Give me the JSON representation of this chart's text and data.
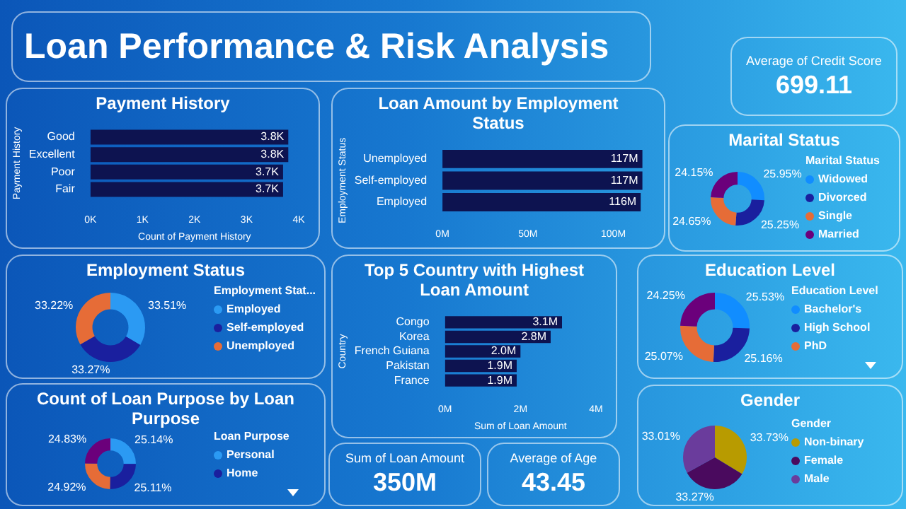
{
  "chart_data": [
    {
      "type": "other",
      "title": "Loan Performance & Risk Analysis"
    },
    {
      "type": "other",
      "title": "Average of Credit Score",
      "annotations": [
        "699.11"
      ]
    },
    {
      "type": "bar",
      "orientation": "horizontal",
      "title": "Payment History",
      "xlabel": "Count of Payment History",
      "ylabel": "Payment History",
      "categories": [
        "Good",
        "Excellent",
        "Poor",
        "Fair"
      ],
      "values": [
        3.8,
        3.8,
        3.7,
        3.7
      ],
      "value_labels": [
        "3.8K",
        "3.8K",
        "3.7K",
        "3.7K"
      ],
      "color": "#0d1350",
      "xlim": [
        0,
        4
      ],
      "xticks": [
        {
          "value": 0,
          "label": "0K"
        },
        {
          "value": 1,
          "label": "1K"
        },
        {
          "value": 2,
          "label": "2K"
        },
        {
          "value": 3,
          "label": "3K"
        },
        {
          "value": 4,
          "label": "4K"
        }
      ]
    },
    {
      "type": "bar",
      "orientation": "horizontal",
      "title": "Loan Amount by Employment Status",
      "ylabel": "Employment Status",
      "categories": [
        "Unemployed",
        "Self-employed",
        "Employed"
      ],
      "values": [
        117,
        117,
        116
      ],
      "value_labels": [
        "117M",
        "117M",
        "116M"
      ],
      "color": "#0d1350",
      "xlim": [
        0,
        118
      ],
      "xticks": [
        {
          "value": 0,
          "label": "0M"
        },
        {
          "value": 50,
          "label": "50M"
        },
        {
          "value": 100,
          "label": "100M"
        }
      ]
    },
    {
      "type": "donut",
      "title": "Marital Status",
      "legend": "right",
      "legend_title": "Marital Status",
      "categories": [
        "Widowed",
        "Divorced",
        "Single",
        "Married"
      ],
      "values": [
        25.95,
        25.25,
        24.65,
        24.15
      ],
      "value_labels": [
        "25.95%",
        "25.25%",
        "24.65%",
        "24.15%"
      ],
      "colors": [
        "#118dff",
        "#1a1f9e",
        "#e66c37",
        "#6b007b"
      ]
    },
    {
      "type": "donut",
      "title": "Employment Status",
      "legend": "right",
      "legend_title": "Employment Stat...",
      "categories": [
        "Employed",
        "Self-employed",
        "Unemployed"
      ],
      "values": [
        33.51,
        33.27,
        33.22
      ],
      "value_labels": [
        "33.51%",
        "33.27%",
        "33.22%"
      ],
      "colors": [
        "#2b9af3",
        "#1a1f9e",
        "#e66c37"
      ]
    },
    {
      "type": "bar",
      "orientation": "horizontal",
      "title": "Top 5 Country with Highest Loan Amount",
      "xlabel": "Sum of Loan Amount",
      "ylabel": "Country",
      "categories": [
        "Congo",
        "Korea",
        "French Guiana",
        "Pakistan",
        "France"
      ],
      "values": [
        3.1,
        2.8,
        2.0,
        1.9,
        1.9
      ],
      "value_labels": [
        "3.1M",
        "2.8M",
        "2.0M",
        "1.9M",
        "1.9M"
      ],
      "color": "#0d1350",
      "xlim": [
        0,
        4
      ],
      "xticks": [
        {
          "value": 0,
          "label": "0M"
        },
        {
          "value": 2,
          "label": "2M"
        },
        {
          "value": 4,
          "label": "4M"
        }
      ]
    },
    {
      "type": "donut",
      "title": "Education Level",
      "legend": "right",
      "legend_title": "Education Level",
      "categories": [
        "Bachelor's",
        "High School",
        "PhD",
        null
      ],
      "values": [
        25.53,
        25.16,
        25.07,
        24.25
      ],
      "value_labels": [
        "25.53%",
        "25.16%",
        "25.07%",
        "24.25%"
      ],
      "colors": [
        "#118dff",
        "#1a1f9e",
        "#e66c37",
        "#6b007b"
      ]
    },
    {
      "type": "donut",
      "title": "Count of Loan Purpose by Loan Purpose",
      "legend": "right",
      "legend_title": "Loan Purpose",
      "categories": [
        "Personal",
        "Home",
        null,
        null
      ],
      "values": [
        25.14,
        25.11,
        24.92,
        24.83
      ],
      "value_labels": [
        "25.14%",
        "25.11%",
        "24.92%",
        "24.83%"
      ],
      "colors": [
        "#2b9af3",
        "#1a1f9e",
        "#e66c37",
        "#6b007b"
      ]
    },
    {
      "type": "other",
      "title": "Sum of Loan Amount",
      "annotations": [
        "350M"
      ]
    },
    {
      "type": "other",
      "title": "Average of Age",
      "annotations": [
        "43.45"
      ]
    },
    {
      "type": "pie",
      "title": "Gender",
      "legend": "right",
      "legend_title": "Gender",
      "categories": [
        "Non-binary",
        "Female",
        "Male"
      ],
      "values": [
        33.73,
        33.27,
        33.01
      ],
      "value_labels": [
        "33.73%",
        "33.27%",
        "33.01%"
      ],
      "colors": [
        "#b89b00",
        "#4a0a5e",
        "#6a3c9c"
      ]
    }
  ]
}
